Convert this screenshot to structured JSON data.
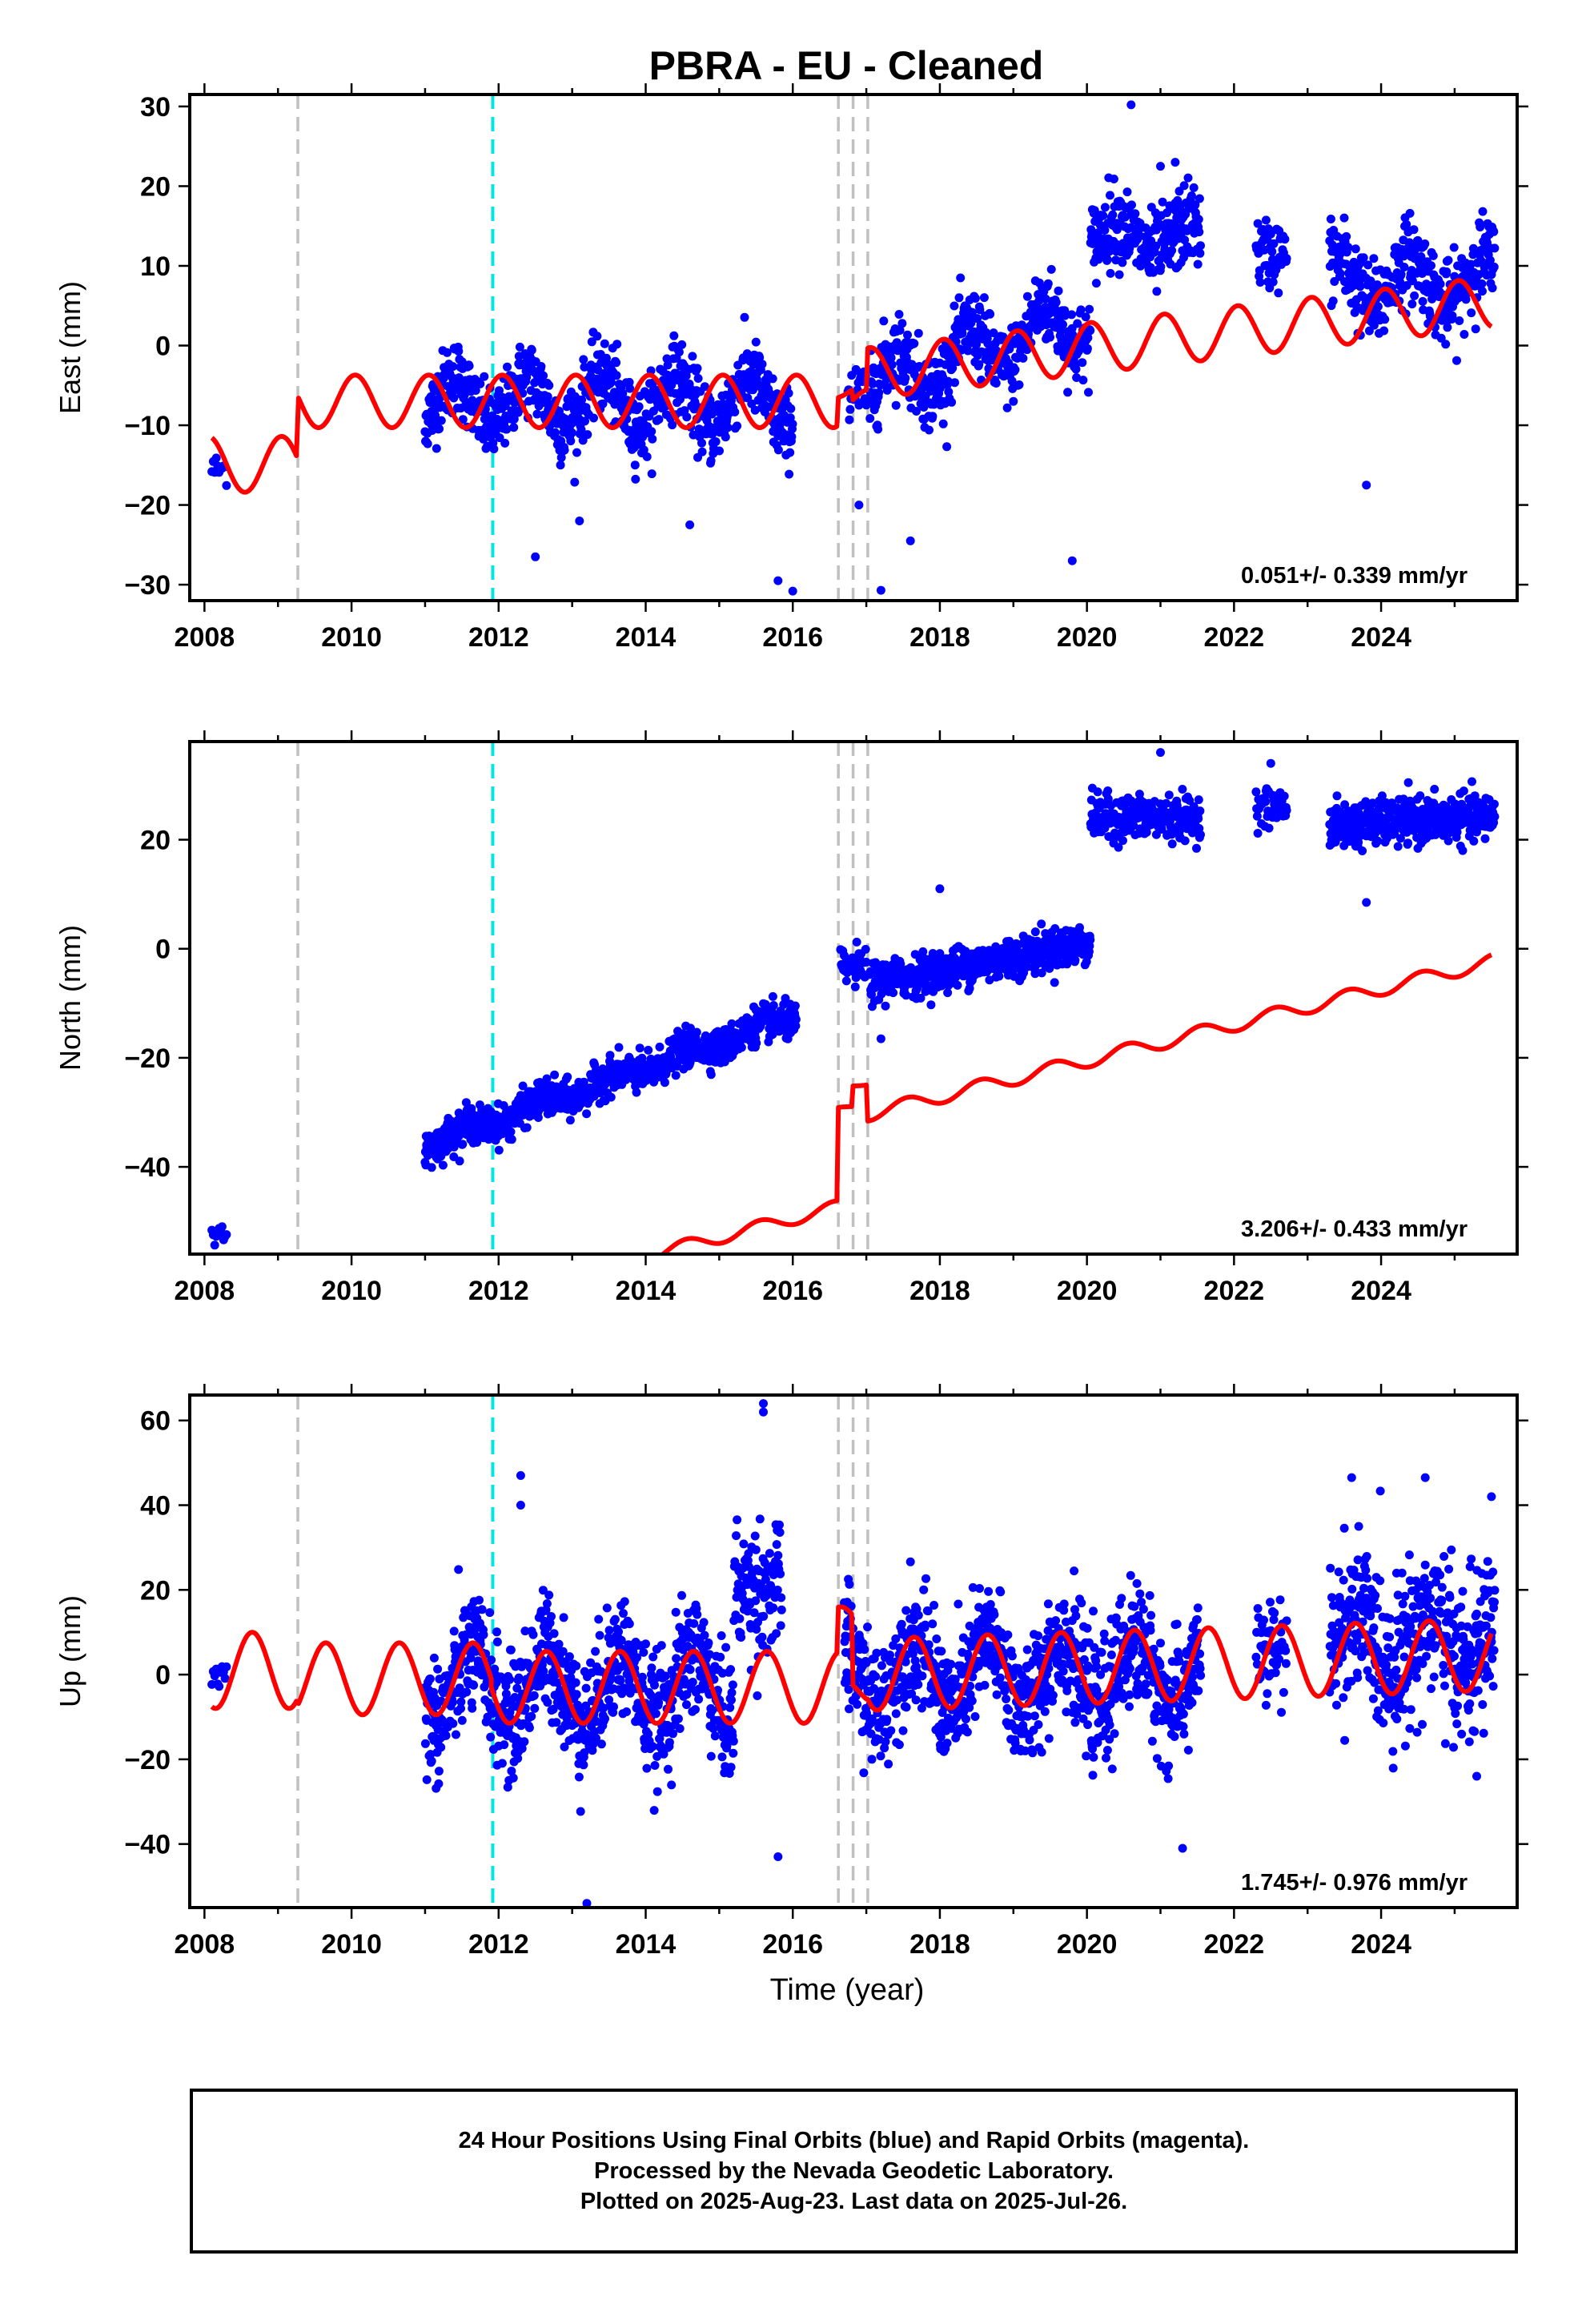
{
  "title": "PBRA  - EU - Cleaned",
  "xlabel": "Time (year)",
  "footer": {
    "line1": "24 Hour Positions Using Final Orbits (blue) and Rapid Orbits (magenta).",
    "line2": "Processed by the Nevada Geodetic Laboratory.",
    "line3": "Plotted on 2025-Aug-23. Last data on 2025-Jul-26."
  },
  "colors": {
    "data": "#0000ff",
    "model": "#ff0000",
    "equipment_change": "#c0c0c0",
    "earthquake": "#00e5e5"
  },
  "chart_data": [
    {
      "type": "scatter",
      "name": "east",
      "ylabel": "East (mm)",
      "rate_text": "0.051+/- 0.339 mm/yr",
      "xlim": [
        2007.8,
        2025.85
      ],
      "ylim": [
        -32,
        31.5
      ],
      "xticks": [
        2008,
        2010,
        2012,
        2014,
        2016,
        2018,
        2020,
        2022,
        2024
      ],
      "yticks": [
        -30,
        -20,
        -10,
        0,
        10,
        20,
        30
      ],
      "equipment_changes": [
        2009.27,
        2016.62,
        2016.82,
        2017.02
      ],
      "earthquakes": [
        2011.92
      ],
      "model": {
        "segments": [
          {
            "x0": 2008.1,
            "x1": 2009.25,
            "offset": -14.9,
            "trend": 0.0,
            "amp": 3.5,
            "phase": 0.8,
            "bumps": [
              2008.3,
              2008.8
            ]
          },
          {
            "x0": 2009.28,
            "x1": 2016.6,
            "offset": -7.0,
            "trend": 0.0,
            "amp": 3.3,
            "phase": 0.8
          },
          {
            "x0": 2016.62,
            "x1": 2016.8,
            "offset": -5.6,
            "trend": 0.0,
            "amp": 1.0,
            "phase": 0.8
          },
          {
            "x0": 2016.82,
            "x1": 2017.0,
            "offset": -7.0,
            "trend": 0.0,
            "amp": 1.5,
            "phase": 0.8
          },
          {
            "x0": 2017.02,
            "x1": 2025.5,
            "offset": -3.5,
            "trend": 1.05,
            "amp": 3.2,
            "phase": 0.8
          }
        ]
      },
      "data_description": "daily positions; 2008.1-2008.3 around -16; 2011.0-2016.6 around -7 with seasonal +/-3.5, scatter 2.5; 2016.8-2020.0 rising from -5 to 3; 2020.0-2021.5 around 14; 2022.3-2022.7 around 12; 2023.3-2025.55 around 8",
      "outliers": [
        [
          2012.5,
          -26.5
        ],
        [
          2013.1,
          -22
        ],
        [
          2014.6,
          -22.5
        ],
        [
          2015.8,
          -29.5
        ],
        [
          2016.0,
          -30.8
        ],
        [
          2017.2,
          -30.7
        ],
        [
          2017.6,
          -24.5
        ],
        [
          2019.8,
          -27
        ],
        [
          2020.6,
          30.2
        ],
        [
          2021.2,
          23
        ],
        [
          2023.8,
          -17.5
        ],
        [
          2021.0,
          22.5
        ],
        [
          2016.9,
          -20
        ]
      ]
    },
    {
      "type": "scatter",
      "name": "north",
      "ylabel": "North (mm)",
      "rate_text": "3.206+/- 0.433 mm/yr",
      "xlim": [
        2007.8,
        2025.85
      ],
      "ylim": [
        -56,
        38
      ],
      "xticks": [
        2008,
        2010,
        2012,
        2014,
        2016,
        2018,
        2020,
        2022,
        2024
      ],
      "yticks": [
        -40,
        -20,
        0,
        20
      ],
      "equipment_changes": [
        2009.27,
        2016.62,
        2016.82,
        2017.02
      ],
      "earthquakes": [
        2011.92
      ],
      "model": {
        "segments": [
          {
            "x0": 2008.1,
            "x1": 2009.25,
            "offset": -50.0,
            "trend": 2.8,
            "amp": 1.0,
            "phase": 0.3
          },
          {
            "x0": 2009.28,
            "x1": 2016.6,
            "offset": -46.0,
            "trend": 3.45,
            "amp": 1.2,
            "phase": 0.3
          },
          {
            "x0": 2016.62,
            "x1": 2016.8,
            "offset": -28.3,
            "trend": 3.3,
            "amp": 0.5,
            "phase": 0.3
          },
          {
            "x0": 2016.82,
            "x1": 2017.0,
            "offset": -24.5,
            "trend": 3.3,
            "amp": 0.5,
            "phase": 0.3
          },
          {
            "x0": 2017.02,
            "x1": 2025.5,
            "offset": -30.4,
            "trend": 3.3,
            "amp": 1.3,
            "phase": 0.3
          }
        ]
      },
      "data_description": "daily positions; 2008.1-2008.3 around -52; 2011.0-2016.0 rising linearly -36 to -12 with steeper trend; 2016.6-2017.0 around -4; 2017.0-2020.0 rising -6 to 1; 2020.0-2021.5 around 24; 2022.3-2022.7 around 26; 2023.3-2025.55 around 23",
      "outliers": [
        [
          2018.0,
          11
        ],
        [
          2023.8,
          8.5
        ],
        [
          2021.0,
          36
        ],
        [
          2022.5,
          34
        ],
        [
          2017.2,
          -16.5
        ]
      ]
    },
    {
      "type": "scatter",
      "name": "up",
      "ylabel": "Up (mm)",
      "rate_text": "1.745+/- 0.976 mm/yr",
      "xlim": [
        2007.8,
        2025.85
      ],
      "ylim": [
        -55,
        66
      ],
      "xticks": [
        2008,
        2010,
        2012,
        2014,
        2016,
        2018,
        2020,
        2022,
        2024
      ],
      "yticks": [
        -40,
        -20,
        0,
        20,
        40,
        60
      ],
      "equipment_changes": [
        2009.27,
        2016.62,
        2016.82,
        2017.02
      ],
      "earthquakes": [
        2011.92
      ],
      "model": {
        "segments": [
          {
            "x0": 2008.1,
            "x1": 2009.25,
            "offset": 1.0,
            "trend": 0.0,
            "amp": 9.0,
            "phase": 0.4
          },
          {
            "x0": 2009.28,
            "x1": 2011.9,
            "offset": -1.0,
            "trend": 0.0,
            "amp": 8.5,
            "phase": 0.4
          },
          {
            "x0": 2011.9,
            "x1": 2016.6,
            "offset": -3.0,
            "trend": 0.0,
            "amp": 8.5,
            "phase": 0.4
          },
          {
            "x0": 2016.62,
            "x1": 2016.8,
            "offset": 12.0,
            "trend": 0.0,
            "amp": 4.0,
            "phase": 0.4
          },
          {
            "x0": 2016.82,
            "x1": 2017.0,
            "offset": -4.0,
            "trend": 0.0,
            "amp": 3.0,
            "phase": 0.4
          },
          {
            "x0": 2017.02,
            "x1": 2025.5,
            "offset": 0.0,
            "trend": 0.55,
            "amp": 8.5,
            "phase": 0.4
          }
        ]
      },
      "data_description": "daily positions; 2008.1-2008.3 around 0; 2011.0-2016.0 around 0 with seasonal +/-10 and scatter 8; 2015.3-2015.8 high around 20; 2016.7-2021.5 around 0 with seasonal; 2022.3-2022.7 around 5; 2023.3-2025.55 around 8 with wide scatter",
      "outliers": [
        [
          2012.3,
          47
        ],
        [
          2012.3,
          40
        ],
        [
          2015.6,
          64
        ],
        [
          2015.6,
          62
        ],
        [
          2015.8,
          -43
        ],
        [
          2013.2,
          -54
        ],
        [
          2021.3,
          -41
        ],
        [
          2024.6,
          46.5
        ],
        [
          2023.6,
          46.5
        ],
        [
          2025.5,
          42
        ],
        [
          2025.3,
          -24
        ]
      ]
    }
  ]
}
